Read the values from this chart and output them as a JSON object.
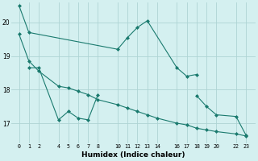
{
  "xlabel": "Humidex (Indice chaleur)",
  "bg_color": "#d4f0f0",
  "grid_color": "#aed4d4",
  "line_color": "#1a7a6e",
  "ylim": [
    16.4,
    20.6
  ],
  "yticks": [
    17,
    18,
    19,
    20
  ],
  "xlim": [
    -0.8,
    24.0
  ],
  "xtick_positions": [
    0,
    1,
    2,
    4,
    5,
    6,
    7,
    8,
    10,
    11,
    12,
    13,
    14,
    16,
    17,
    18,
    19,
    20,
    22,
    23
  ],
  "series1_x": [
    0,
    1,
    10,
    11,
    12,
    13,
    16,
    17,
    18
  ],
  "series1_y": [
    20.5,
    19.7,
    19.2,
    19.55,
    19.85,
    20.05,
    18.65,
    18.4,
    18.45
  ],
  "series2_x": [
    1,
    2,
    4,
    5,
    6,
    7,
    8
  ],
  "series2_y": [
    18.65,
    18.65,
    17.1,
    17.35,
    17.15,
    17.1,
    17.85
  ],
  "series3_x": [
    0,
    1,
    2,
    4,
    5,
    6,
    7,
    8,
    10,
    11,
    12,
    13,
    14,
    16,
    17,
    18,
    19,
    20,
    22,
    23
  ],
  "series3_y": [
    19.65,
    18.85,
    18.55,
    18.1,
    18.05,
    17.95,
    17.85,
    17.7,
    17.55,
    17.45,
    17.35,
    17.25,
    17.15,
    17.0,
    16.95,
    16.85,
    16.8,
    16.75,
    16.68,
    16.62
  ],
  "series4_x": [
    18,
    19,
    20,
    22,
    23
  ],
  "series4_y": [
    17.82,
    17.5,
    17.25,
    17.2,
    16.65
  ]
}
